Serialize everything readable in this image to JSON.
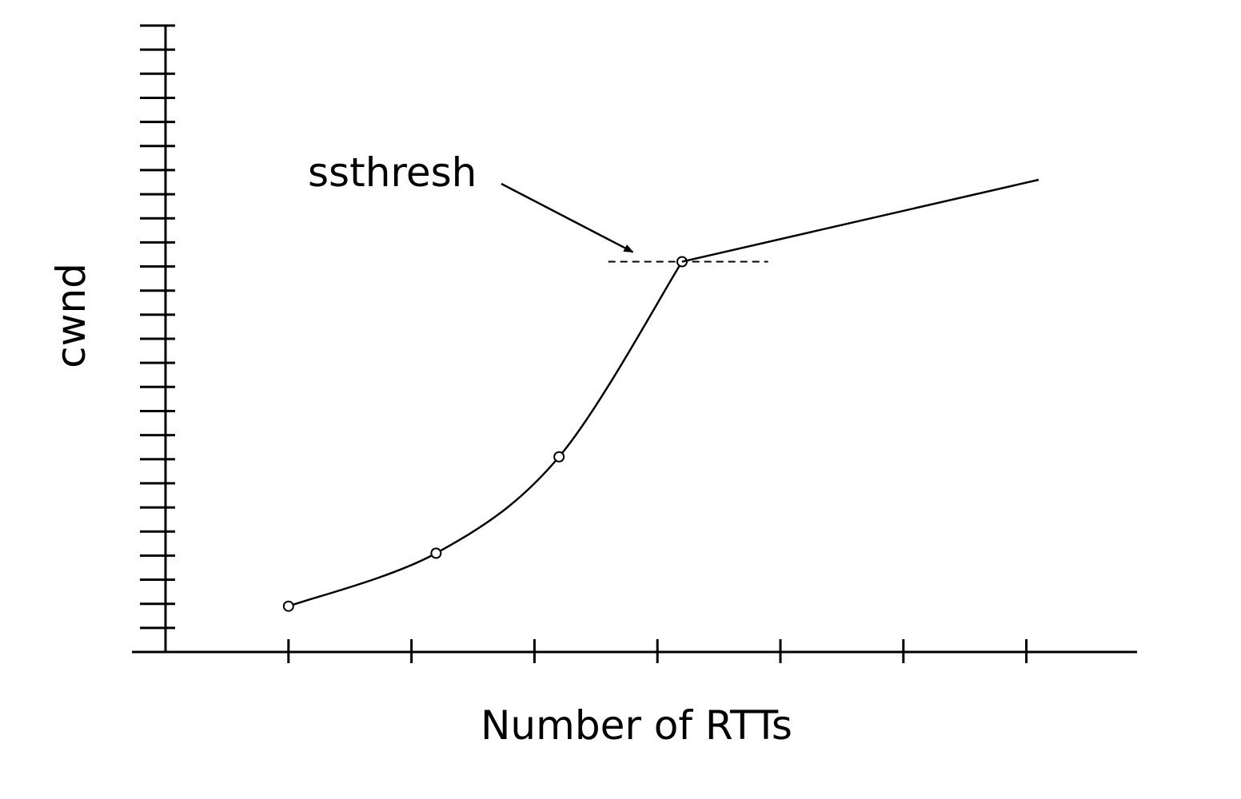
{
  "chart_data": {
    "type": "line",
    "title": "",
    "xlabel": "Number of RTTs",
    "ylabel": "cwnd",
    "x_ticks": [
      1,
      2,
      3,
      4,
      5,
      6,
      7
    ],
    "x_tick_labels": [],
    "y_ticks": [
      0,
      1,
      2,
      3,
      4,
      5,
      6,
      7,
      8,
      9,
      10,
      11,
      12,
      13,
      14,
      15,
      16,
      17,
      18,
      19,
      20,
      21,
      22,
      23,
      24,
      25,
      26
    ],
    "y_tick_labels": [],
    "xlim": [
      0,
      7.9
    ],
    "ylim": [
      0,
      26
    ],
    "grid": false,
    "legend": "none",
    "series": [
      {
        "markers": true,
        "points": [
          {
            "x": 1,
            "y": 1.9
          },
          {
            "x": 2.2,
            "y": 4.1
          },
          {
            "x": 3.2,
            "y": 8.1
          },
          {
            "x": 4.2,
            "y": 16.2
          }
        ]
      },
      {
        "markers": false,
        "points": [
          {
            "x": 4.2,
            "y": 16.2
          },
          {
            "x": 7.1,
            "y": 19.6
          }
        ]
      }
    ],
    "threshold": {
      "value": 16.2,
      "x_from": 3.6,
      "x_to": 4.9,
      "style": "dashed"
    },
    "annotations": [
      {
        "text": "ssthresh",
        "target": {
          "x": 3.8,
          "y": 16.6
        }
      }
    ],
    "colors": {
      "line": "#000000",
      "axis": "#000000",
      "background": "#ffffff"
    }
  }
}
